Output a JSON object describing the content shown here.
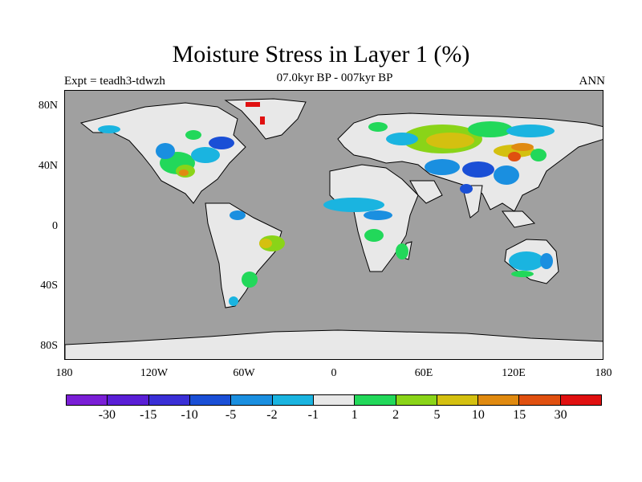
{
  "title": "Moisture Stress in Layer 1 (%)",
  "subtitle": "07.0kyr BP - 007kyr BP",
  "left_label": "Expt = teadh3-tdwzh",
  "right_label": "ANN",
  "y_ticks": [
    "80N",
    "40N",
    "0",
    "40S",
    "80S"
  ],
  "x_ticks": [
    "180",
    "120W",
    "60W",
    "0",
    "60E",
    "120E",
    "180"
  ],
  "colors": {
    "ocean": "#a0a0a0",
    "land_neutral": "#e8e8e8",
    "colorbar": [
      "#7a1fd6",
      "#5a1fd6",
      "#3a2fd6",
      "#1a4fd6",
      "#1a8fe0",
      "#1ab4e0",
      "#e8e8e8",
      "#22d85a",
      "#8ad418",
      "#d4c010",
      "#e08a10",
      "#e05010",
      "#e01010"
    ]
  },
  "colorbar_labels": [
    "-30",
    "-15",
    "-10",
    "-5",
    "-2",
    "-1",
    "1",
    "2",
    "5",
    "10",
    "15",
    "30"
  ]
}
